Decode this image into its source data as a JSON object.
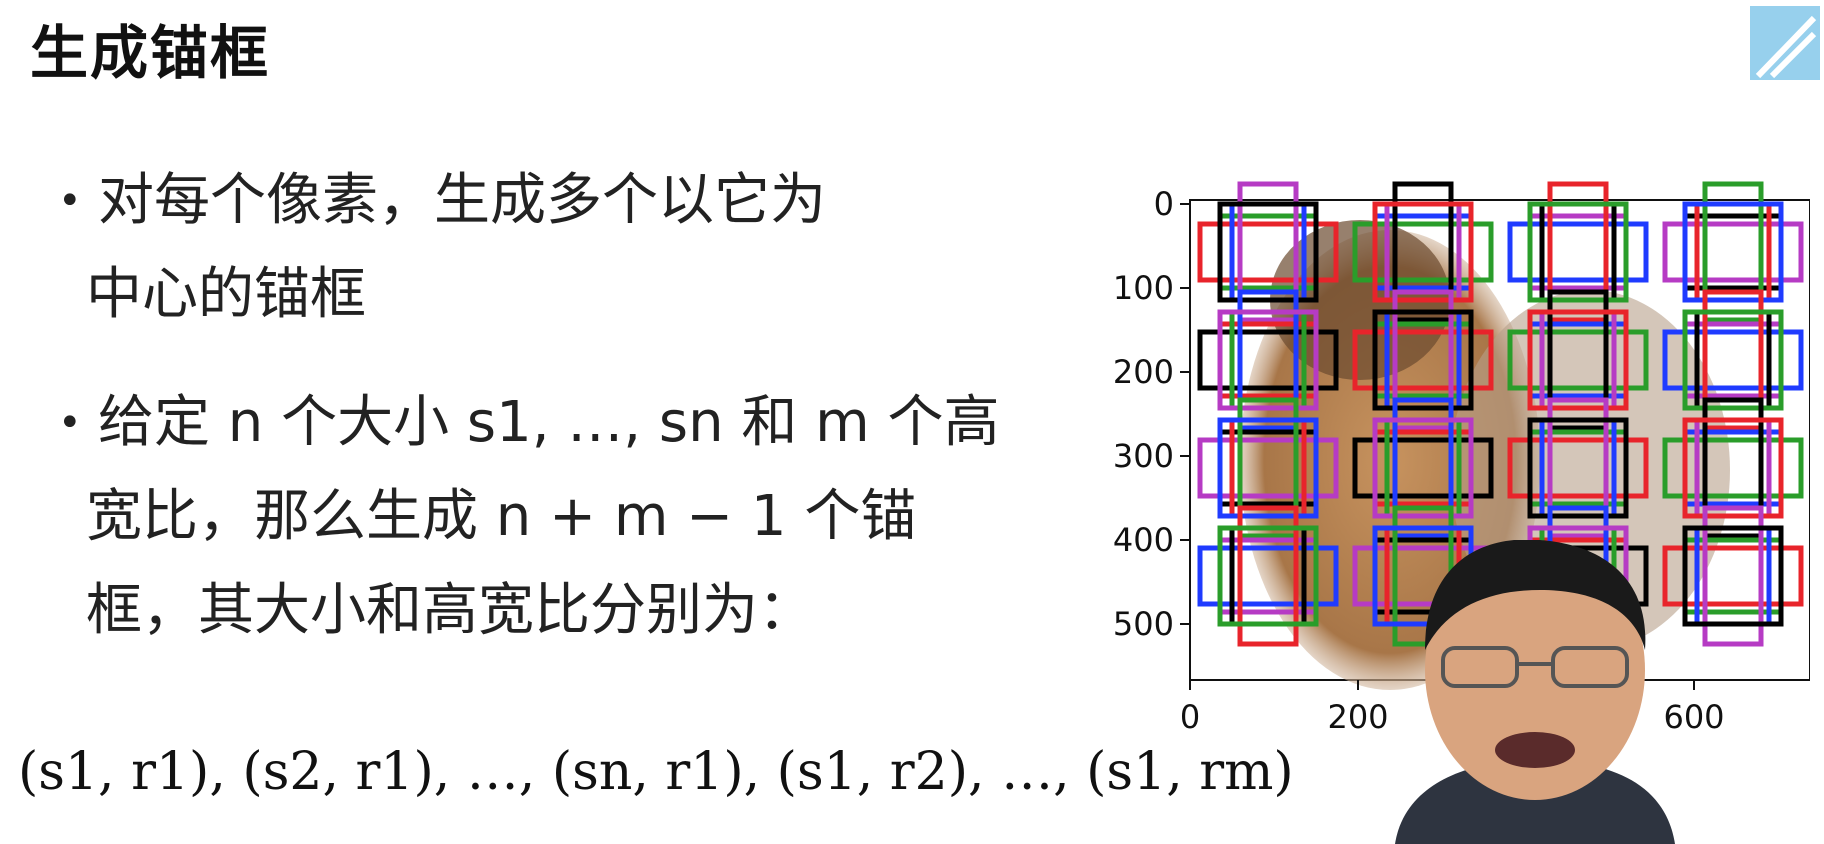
{
  "slide": {
    "title": "生成锚框",
    "bullet1_line1": "对每个像素，生成多个以它为",
    "bullet1_line2": "中心的锚框",
    "bullet2_line1": "给定 n 个大小 s1, …, sn 和 m 个高",
    "bullet2_line2": "宽比，那么生成 n + m − 1 个锚",
    "bullet2_line3": "框，其大小和高宽比分别为：",
    "formula": "(s1, r1), (s2, r1), …, (sn, r1), (s1, r2), …, (s1, rm)"
  },
  "chart_data": {
    "type": "image-with-anchor-boxes",
    "y_ticks": [
      "0",
      "100",
      "200",
      "300",
      "400",
      "500"
    ],
    "x_ticks": [
      "0",
      "200",
      "400",
      "600"
    ],
    "box_colors": [
      "#e8242b",
      "#2a9d2a",
      "#1f3bff",
      "#b63bc4",
      "#000000"
    ]
  },
  "icons": {
    "logo": "bilibili-logo",
    "presenter": "presenter-video"
  }
}
